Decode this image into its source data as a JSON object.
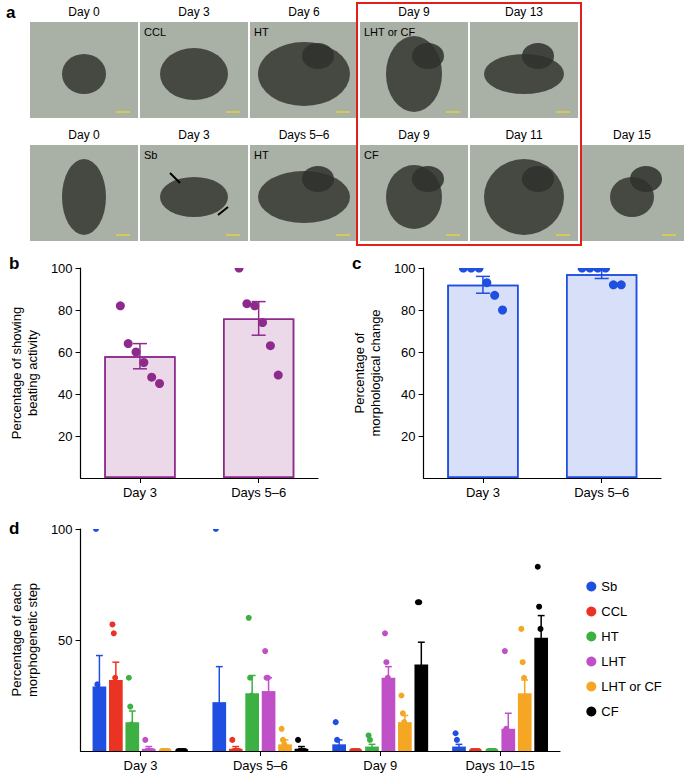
{
  "figure_a": {
    "panel": "a",
    "rows": [
      [
        {
          "day": "Day 0"
        },
        {
          "day": "Day 3",
          "stage": "CCL"
        },
        {
          "day": "Day 6",
          "stage": "HT"
        },
        {
          "day": "Day 9",
          "stage": "LHT or CF"
        },
        {
          "day": "Day 13"
        }
      ],
      [
        {
          "day": "Day 0"
        },
        {
          "day": "Day 3",
          "stage": "Sb"
        },
        {
          "day": "Days 5–6",
          "stage": "HT"
        },
        {
          "day": "Day 9",
          "stage": "CF"
        },
        {
          "day": "Day 11"
        },
        {
          "day": "Day 15"
        }
      ]
    ]
  },
  "chart_data": [
    {
      "panel": "b",
      "type": "bar",
      "ylabel": "Percentage of showing\nbeating activity",
      "categories": [
        "Day 3",
        "Days 5–6"
      ],
      "values": [
        58,
        76
      ],
      "errors": [
        6,
        8
      ],
      "points": [
        [
          82,
          64,
          60,
          55,
          48,
          45
        ],
        [
          100,
          83,
          82,
          74,
          63,
          49
        ]
      ],
      "color": "#8e2a8c",
      "ylim": [
        0,
        100
      ],
      "yticks": [
        20,
        40,
        60,
        80,
        100
      ],
      "grid": false
    },
    {
      "panel": "c",
      "type": "bar",
      "ylabel": "Percentage of\nmorphological change",
      "categories": [
        "Day 3",
        "Days 5–6"
      ],
      "values": [
        92,
        97
      ],
      "errors": [
        4,
        2
      ],
      "points": [
        [
          100,
          100,
          100,
          93,
          87,
          80
        ],
        [
          100,
          100,
          100,
          100,
          92,
          92
        ]
      ],
      "color": "#1f4fe0",
      "ylim": [
        0,
        100
      ],
      "yticks": [
        20,
        40,
        60,
        80,
        100
      ],
      "grid": false
    },
    {
      "panel": "d",
      "type": "bar",
      "ylabel": "Percentage of each\nmorphogenetic step",
      "categories": [
        "Day 3",
        "Days 5–6",
        "Day 9",
        "Days 10–15"
      ],
      "series": [
        {
          "name": "Sb",
          "color": "#1f4fe0",
          "values": [
            29,
            22,
            3,
            2
          ],
          "errors": [
            14,
            16,
            2,
            1
          ],
          "points": [
            [
              100,
              30,
              25,
              15,
              5,
              0
            ],
            [
              100,
              17,
              10,
              5,
              0,
              0
            ],
            [
              13,
              5,
              0,
              0,
              0,
              0
            ],
            [
              8,
              5,
              0,
              0,
              0,
              0
            ]
          ]
        },
        {
          "name": "CCL",
          "color": "#ea3323",
          "values": [
            32,
            1,
            0,
            0
          ],
          "errors": [
            8,
            1,
            0,
            0
          ],
          "points": [
            [
              57,
              53,
              33,
              25,
              15,
              10
            ],
            [
              5,
              0,
              0,
              0,
              0,
              0
            ],
            [
              0,
              0,
              0,
              0,
              0,
              0
            ],
            [
              0,
              0,
              0,
              0,
              0,
              0
            ]
          ]
        },
        {
          "name": "HT",
          "color": "#3cb043",
          "values": [
            13,
            26,
            2,
            0
          ],
          "errors": [
            5,
            8,
            1,
            0
          ],
          "points": [
            [
              33,
              20,
              12,
              8,
              5,
              0
            ],
            [
              60,
              33,
              25,
              20,
              10,
              8
            ],
            [
              7,
              5,
              0,
              0,
              0,
              0
            ],
            [
              0,
              0,
              0,
              0,
              0,
              0
            ]
          ]
        },
        {
          "name": "LHT",
          "color": "#c050c8",
          "values": [
            1,
            27,
            33,
            10
          ],
          "errors": [
            1,
            6,
            5,
            7
          ],
          "points": [
            [
              5,
              0,
              0,
              0,
              0,
              0
            ],
            [
              45,
              33,
              33,
              25,
              15,
              10
            ],
            [
              53,
              40,
              33,
              30,
              25,
              17
            ],
            [
              45,
              10,
              5,
              0,
              0,
              0
            ]
          ]
        },
        {
          "name": "LHT or CF",
          "color": "#f5a623",
          "values": [
            0,
            3,
            13,
            26
          ],
          "errors": [
            0,
            2,
            3,
            6
          ],
          "points": [
            [
              0,
              0,
              0,
              0,
              0,
              0
            ],
            [
              10,
              5,
              3,
              0,
              0,
              0
            ],
            [
              25,
              17,
              13,
              10,
              8,
              5
            ],
            [
              55,
              40,
              33,
              20,
              5,
              0
            ]
          ]
        },
        {
          "name": "CF",
          "color": "#000000",
          "values": [
            0,
            1,
            39,
            51
          ],
          "errors": [
            0,
            1,
            10,
            10
          ],
          "points": [
            [
              0,
              0,
              0,
              0,
              0,
              0
            ],
            [
              5,
              0,
              0,
              0,
              0,
              0
            ],
            [
              67,
              67,
              33,
              25,
              22,
              17
            ],
            [
              83,
              65,
              55,
              40,
              30,
              33
            ]
          ]
        }
      ],
      "ylim": [
        0,
        100
      ],
      "yticks": [
        50,
        100
      ],
      "grid": false,
      "legend": "right"
    }
  ]
}
